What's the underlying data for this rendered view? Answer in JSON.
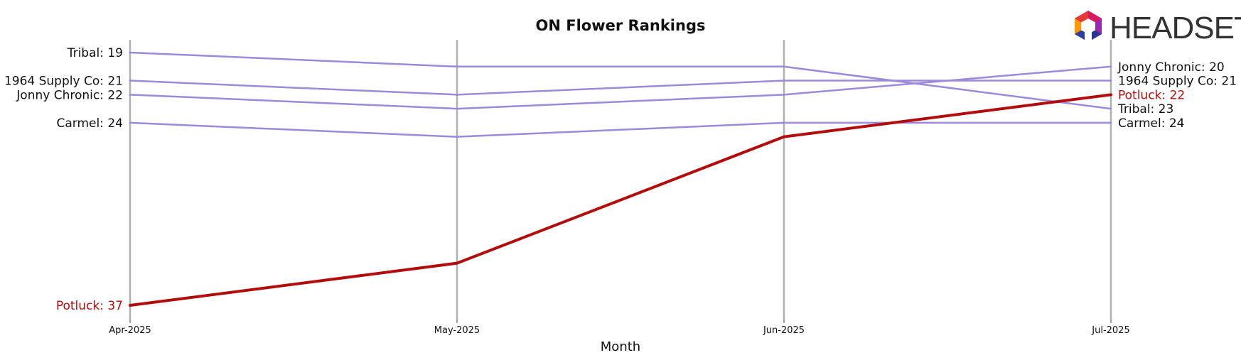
{
  "chart_data": {
    "type": "line",
    "title": "ON Flower Rankings",
    "xlabel": "Month",
    "ylabel": "",
    "y_inverted": true,
    "ylim": [
      18,
      38
    ],
    "categories": [
      "Apr-2025",
      "May-2025",
      "Jun-2025",
      "Jul-2025"
    ],
    "series": [
      {
        "name": "Tribal",
        "values": [
          19,
          20,
          20,
          23
        ],
        "highlight": false
      },
      {
        "name": "1964 Supply Co",
        "values": [
          21,
          22,
          21,
          21
        ],
        "highlight": false
      },
      {
        "name": "Jonny Chronic",
        "values": [
          22,
          23,
          22,
          20
        ],
        "highlight": false
      },
      {
        "name": "Carmel",
        "values": [
          24,
          25,
          24,
          24
        ],
        "highlight": false
      },
      {
        "name": "Potluck",
        "values": [
          37,
          34,
          25,
          22
        ],
        "highlight": true
      }
    ],
    "label_separator": ": ",
    "colors": {
      "base": "#9b8ad9",
      "highlight": "#b30c0c",
      "gridline": "#b0b0b0",
      "text": "#111111"
    },
    "grid": "vertical"
  },
  "logo": {
    "text": "HEADSET"
  }
}
